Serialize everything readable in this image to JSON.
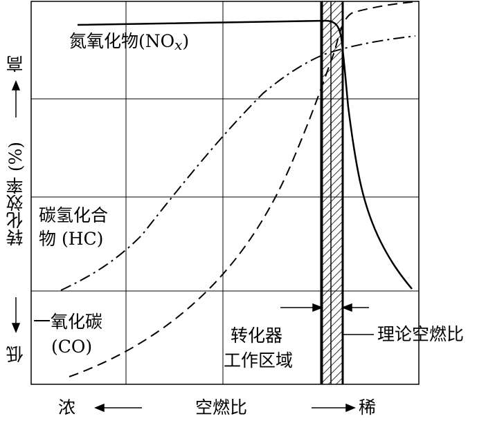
{
  "chart_data": {
    "type": "line",
    "xlabel": "空燃比",
    "x_left": "浓",
    "x_right": "稀",
    "ylabel": "转化效率 (%)",
    "y_low": "低",
    "y_high": "高",
    "curves": {
      "nox": {
        "label_line1": "氮氧化物(NO",
        "label_sub": "x",
        "label_line2": ")"
      },
      "hc": {
        "label_line1": "碳氢化合",
        "label_line2": "物 (HC)"
      },
      "co": {
        "label_line1": "一氧化碳",
        "label_line2": "(CO)"
      }
    },
    "annotations": {
      "zone_line1": "转化器",
      "zone_line2": "工作区域",
      "stoich": "理论空燃比"
    }
  }
}
